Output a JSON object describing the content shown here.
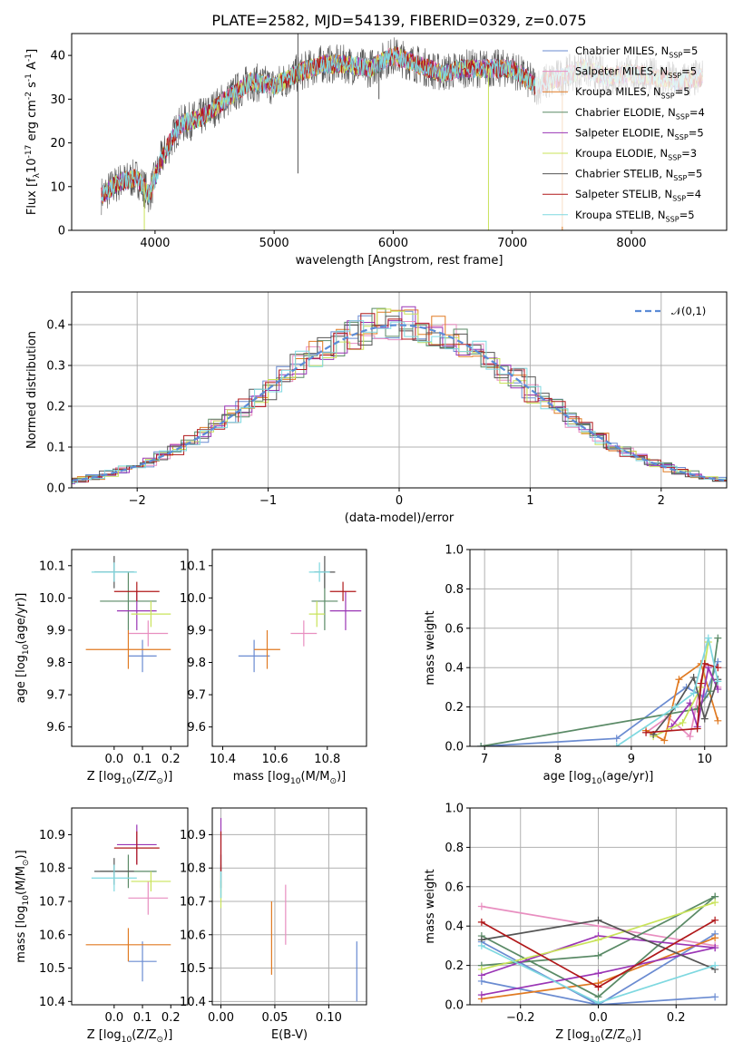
{
  "chart_data": [
    {
      "id": "spectrum",
      "type": "line",
      "title": "PLATE=2582, MJD=54139, FIBERID=0329, z=0.075",
      "xlabel": "wavelength [Angstrom, rest frame]",
      "ylabel": "Flux [f$_\\lambda$10$^{-17}$ erg cm$^{-2}$ s$^{-1}$ A$^{-1}$]",
      "xlim": [
        3300,
        8800
      ],
      "ylim": [
        0,
        45
      ],
      "xticks": [
        4000,
        5000,
        6000,
        7000,
        8000
      ],
      "yticks": [
        0,
        10,
        20,
        30,
        40
      ],
      "grid": false,
      "legend_position": "top-right",
      "continuum": {
        "x": [
          3550,
          3700,
          3850,
          3950,
          4050,
          4200,
          4400,
          4600,
          4800,
          5000,
          5200,
          5400,
          5600,
          5800,
          6000,
          6200,
          6400,
          6600,
          6800,
          7000,
          7200,
          7400,
          7600,
          7800,
          8000,
          8200,
          8400,
          8600
        ],
        "y": [
          8,
          11,
          12,
          8,
          16,
          24,
          26,
          30,
          34,
          33,
          36,
          38,
          38,
          37,
          40,
          38,
          36,
          37,
          37,
          37,
          33,
          35,
          37,
          35,
          36,
          35,
          34,
          35
        ]
      },
      "series": [
        {
          "name": "Chabrier MILES, N$_{SSP}$=5",
          "color": "#6a8bd1"
        },
        {
          "name": "Salpeter MILES, N$_{SSP}$=5",
          "color": "#e88ec0"
        },
        {
          "name": "Kroupa MILES, N$_{SSP}$=5",
          "color": "#e07a22"
        },
        {
          "name": "Chabrier ELODIE, N$_{SSP}$=4",
          "color": "#5a8a66"
        },
        {
          "name": "Salpeter ELODIE, N$_{SSP}$=5",
          "color": "#9a35b5"
        },
        {
          "name": "Kroupa ELODIE, N$_{SSP}$=3",
          "color": "#c9e35a"
        },
        {
          "name": "Chabrier STELIB, N$_{SSP}$=5",
          "color": "#555555"
        },
        {
          "name": "Salpeter STELIB, N$_{SSP}$=4",
          "color": "#b0181a"
        },
        {
          "name": "Kroupa STELIB, N$_{SSP}$=5",
          "color": "#7ed8e0"
        }
      ]
    },
    {
      "id": "residuals",
      "type": "line",
      "xlabel": "(data-model)/error",
      "ylabel": "Normed distribution",
      "xlim": [
        -2.5,
        2.5
      ],
      "ylim": [
        0,
        0.48
      ],
      "xticks": [
        -2,
        -1,
        0,
        1,
        2
      ],
      "yticks": [
        0.0,
        0.1,
        0.2,
        0.3,
        0.4
      ],
      "grid": true,
      "legend_position": "top-right",
      "legend_label": "$\\mathcal{N}(0,1)$",
      "reference_curve": "normal(0,1)"
    },
    {
      "id": "age_vs_Z",
      "type": "scatter",
      "xlabel": "Z [log$_{10}$(Z/Z$_\\odot$)]",
      "ylabel": "age  [log$_{10}$(age/yr)]",
      "xlim": [
        -0.15,
        0.26
      ],
      "ylim": [
        9.54,
        10.15
      ],
      "xticks": [
        0.0,
        0.1,
        0.2
      ],
      "yticks": [
        9.6,
        9.7,
        9.8,
        9.9,
        10.0,
        10.1
      ],
      "grid": false,
      "points": [
        {
          "x": 0.1,
          "y": 9.82,
          "ex": 0.05,
          "ey": 0.05,
          "color": "#6a8bd1"
        },
        {
          "x": 0.12,
          "y": 9.89,
          "ex": 0.07,
          "ey": 0.04,
          "color": "#e88ec0"
        },
        {
          "x": 0.05,
          "y": 9.84,
          "ex": 0.15,
          "ey": 0.06,
          "color": "#e07a22"
        },
        {
          "x": 0.05,
          "y": 9.99,
          "ex": 0.1,
          "ey": 0.09,
          "color": "#5a8a66"
        },
        {
          "x": 0.08,
          "y": 9.96,
          "ex": 0.07,
          "ey": 0.06,
          "color": "#9a35b5"
        },
        {
          "x": 0.13,
          "y": 9.95,
          "ex": 0.07,
          "ey": 0.04,
          "color": "#c9e35a"
        },
        {
          "x": 0.0,
          "y": 10.08,
          "ex": 0.07,
          "ey": 0.05,
          "color": "#555555"
        },
        {
          "x": 0.08,
          "y": 10.02,
          "ex": 0.08,
          "ey": 0.03,
          "color": "#b0181a"
        },
        {
          "x": 0.0,
          "y": 10.08,
          "ex": 0.08,
          "ey": 0.03,
          "color": "#7ed8e0"
        }
      ]
    },
    {
      "id": "age_vs_mass",
      "type": "scatter",
      "xlabel": "mass [log$_{10}$(M/M$_\\odot$)]",
      "ylabel": "",
      "xlim": [
        10.36,
        10.95
      ],
      "ylim": [
        9.54,
        10.15
      ],
      "xticks": [
        10.4,
        10.6,
        10.8
      ],
      "yticks": [
        9.6,
        9.7,
        9.8,
        9.9,
        10.0,
        10.1
      ],
      "grid": false,
      "points": [
        {
          "x": 10.52,
          "y": 9.82,
          "ex": 0.06,
          "ey": 0.05,
          "color": "#6a8bd1"
        },
        {
          "x": 10.71,
          "y": 9.89,
          "ex": 0.05,
          "ey": 0.04,
          "color": "#e88ec0"
        },
        {
          "x": 10.57,
          "y": 9.84,
          "ex": 0.05,
          "ey": 0.06,
          "color": "#e07a22"
        },
        {
          "x": 10.79,
          "y": 9.99,
          "ex": 0.05,
          "ey": 0.09,
          "color": "#5a8a66"
        },
        {
          "x": 10.87,
          "y": 9.96,
          "ex": 0.06,
          "ey": 0.06,
          "color": "#9a35b5"
        },
        {
          "x": 10.76,
          "y": 9.95,
          "ex": 0.03,
          "ey": 0.04,
          "color": "#c9e35a"
        },
        {
          "x": 10.79,
          "y": 10.08,
          "ex": 0.04,
          "ey": 0.05,
          "color": "#555555"
        },
        {
          "x": 10.86,
          "y": 10.02,
          "ex": 0.05,
          "ey": 0.03,
          "color": "#b0181a"
        },
        {
          "x": 10.77,
          "y": 10.08,
          "ex": 0.04,
          "ey": 0.03,
          "color": "#7ed8e0"
        }
      ]
    },
    {
      "id": "mass_weight_vs_age",
      "type": "line",
      "xlabel": "age  [log$_{10}$(age/yr)]",
      "ylabel": "mass weight",
      "xlim": [
        6.8,
        10.3
      ],
      "ylim": [
        0,
        1.0
      ],
      "xticks": [
        7,
        8,
        9,
        10
      ],
      "yticks": [
        0.0,
        0.2,
        0.4,
        0.6,
        0.8,
        1.0
      ],
      "grid": true,
      "series": [
        {
          "color": "#6a8bd1",
          "x": [
            6.95,
            8.8,
            9.75,
            10.0,
            10.18
          ],
          "y": [
            0.0,
            0.04,
            0.3,
            0.25,
            0.43
          ]
        },
        {
          "color": "#e88ec0",
          "x": [
            9.2,
            9.5,
            9.8,
            10.0,
            10.18
          ],
          "y": [
            0.07,
            0.15,
            0.05,
            0.42,
            0.3
          ]
        },
        {
          "color": "#e07a22",
          "x": [
            9.2,
            9.45,
            9.65,
            9.95,
            10.18
          ],
          "y": [
            0.08,
            0.03,
            0.34,
            0.42,
            0.13
          ]
        },
        {
          "color": "#5a8a66",
          "x": [
            6.95,
            9.9,
            10.08,
            10.18
          ],
          "y": [
            0.0,
            0.19,
            0.28,
            0.55
          ]
        },
        {
          "color": "#9a35b5",
          "x": [
            9.55,
            9.8,
            9.9,
            10.05,
            10.18
          ],
          "y": [
            0.1,
            0.22,
            0.1,
            0.4,
            0.29
          ]
        },
        {
          "color": "#c9e35a",
          "x": [
            9.3,
            9.7,
            9.95,
            10.05
          ],
          "y": [
            0.05,
            0.12,
            0.3,
            0.53
          ]
        },
        {
          "color": "#555555",
          "x": [
            9.3,
            9.6,
            9.85,
            10.0,
            10.18
          ],
          "y": [
            0.06,
            0.2,
            0.35,
            0.14,
            0.34
          ]
        },
        {
          "color": "#b0181a",
          "x": [
            9.2,
            9.9,
            9.95,
            10.0,
            10.18
          ],
          "y": [
            0.07,
            0.09,
            0.32,
            0.42,
            0.4
          ]
        },
        {
          "color": "#7ed8e0",
          "x": [
            8.8,
            9.6,
            9.85,
            10.05,
            10.18
          ],
          "y": [
            0.0,
            0.2,
            0.27,
            0.55,
            0.33
          ]
        }
      ]
    },
    {
      "id": "mass_vs_Z",
      "type": "scatter",
      "xlabel": "Z [log$_{10}$(Z/Z$_\\odot$)]",
      "ylabel": "mass [log$_{10}$(M/M$_\\odot$)]",
      "xlim": [
        -0.15,
        0.26
      ],
      "ylim": [
        10.39,
        10.98
      ],
      "xticks": [
        0.0,
        0.1,
        0.2
      ],
      "yticks": [
        10.4,
        10.5,
        10.6,
        10.7,
        10.8,
        10.9
      ],
      "grid": false,
      "points": [
        {
          "x": 0.1,
          "y": 10.52,
          "ex": 0.05,
          "ey": 0.06,
          "color": "#6a8bd1"
        },
        {
          "x": 0.12,
          "y": 10.71,
          "ex": 0.07,
          "ey": 0.05,
          "color": "#e88ec0"
        },
        {
          "x": 0.05,
          "y": 10.57,
          "ex": 0.15,
          "ey": 0.05,
          "color": "#e07a22"
        },
        {
          "x": 0.05,
          "y": 10.79,
          "ex": 0.1,
          "ey": 0.05,
          "color": "#5a8a66"
        },
        {
          "x": 0.08,
          "y": 10.87,
          "ex": 0.07,
          "ey": 0.06,
          "color": "#9a35b5"
        },
        {
          "x": 0.13,
          "y": 10.76,
          "ex": 0.07,
          "ey": 0.03,
          "color": "#c9e35a"
        },
        {
          "x": 0.0,
          "y": 10.79,
          "ex": 0.07,
          "ey": 0.04,
          "color": "#555555"
        },
        {
          "x": 0.08,
          "y": 10.86,
          "ex": 0.08,
          "ey": 0.05,
          "color": "#b0181a"
        },
        {
          "x": 0.0,
          "y": 10.77,
          "ex": 0.08,
          "ey": 0.04,
          "color": "#7ed8e0"
        }
      ]
    },
    {
      "id": "mass_vs_ebv",
      "type": "scatter",
      "xlabel": "E(B-V)",
      "ylabel": "",
      "xlim": [
        -0.008,
        0.135
      ],
      "ylim": [
        10.39,
        10.98
      ],
      "xticks": [
        0.0,
        0.05,
        0.1
      ],
      "yticks": [
        10.4,
        10.5,
        10.6,
        10.7,
        10.8,
        10.9
      ],
      "grid": true,
      "points": [
        {
          "x": 0.126,
          "y": 10.49,
          "ex": 0,
          "ey": 0.09,
          "color": "#6a8bd1"
        },
        {
          "x": 0.06,
          "y": 10.66,
          "ex": 0,
          "ey": 0.09,
          "color": "#e88ec0"
        },
        {
          "x": 0.047,
          "y": 10.59,
          "ex": 0,
          "ey": 0.11,
          "color": "#e07a22"
        },
        {
          "x": 0.0,
          "y": 10.76,
          "ex": 0,
          "ey": 0.05,
          "color": "#5a8a66"
        },
        {
          "x": 0.0,
          "y": 10.87,
          "ex": 0,
          "ey": 0.08,
          "color": "#9a35b5"
        },
        {
          "x": 0.0,
          "y": 10.72,
          "ex": 0,
          "ey": 0.04,
          "color": "#c9e35a"
        },
        {
          "x": 0.0,
          "y": 10.79,
          "ex": 0,
          "ey": 0.05,
          "color": "#555555"
        },
        {
          "x": 0.0,
          "y": 10.85,
          "ex": 0,
          "ey": 0.06,
          "color": "#b0181a"
        },
        {
          "x": 0.0,
          "y": 10.75,
          "ex": 0,
          "ey": 0.04,
          "color": "#7ed8e0"
        }
      ]
    },
    {
      "id": "mass_weight_vs_Z",
      "type": "line",
      "xlabel": "Z [log$_{10}$(Z/Z$_\\odot$)]",
      "ylabel": "mass weight",
      "xlim": [
        -0.33,
        0.33
      ],
      "ylim": [
        0,
        1.0
      ],
      "xticks": [
        -0.2,
        0.0,
        0.2
      ],
      "yticks": [
        0.0,
        0.2,
        0.4,
        0.6,
        0.8,
        1.0
      ],
      "grid": true,
      "series": [
        {
          "color": "#6a8bd1",
          "x": [
            -0.3,
            0.0,
            0.3
          ],
          "y": [
            0.32,
            0.0,
            0.04
          ]
        },
        {
          "color": "#6a8bd1",
          "x": [
            -0.3,
            0.0,
            0.3
          ],
          "y": [
            0.12,
            0.0,
            0.36
          ]
        },
        {
          "color": "#e88ec0",
          "x": [
            -0.3,
            0.0,
            0.3
          ],
          "y": [
            0.5,
            0.4,
            0.3
          ]
        },
        {
          "color": "#e07a22",
          "x": [
            -0.3,
            0.0,
            0.3
          ],
          "y": [
            0.03,
            0.11,
            0.34
          ]
        },
        {
          "color": "#5a8a66",
          "x": [
            -0.3,
            0.0,
            0.3
          ],
          "y": [
            0.2,
            0.25,
            0.55
          ]
        },
        {
          "color": "#5a8a66",
          "x": [
            -0.3,
            0.0,
            0.3
          ],
          "y": [
            0.35,
            0.04,
            0.55
          ]
        },
        {
          "color": "#9a35b5",
          "x": [
            -0.3,
            0.0,
            0.3
          ],
          "y": [
            0.15,
            0.35,
            0.29
          ]
        },
        {
          "color": "#9a35b5",
          "x": [
            -0.3,
            0.0,
            0.3
          ],
          "y": [
            0.05,
            0.16,
            0.29
          ]
        },
        {
          "color": "#c9e35a",
          "x": [
            -0.3,
            0.0,
            0.3
          ],
          "y": [
            0.18,
            0.33,
            0.52
          ]
        },
        {
          "color": "#555555",
          "x": [
            -0.3,
            0.0,
            0.3
          ],
          "y": [
            0.33,
            0.43,
            0.18
          ]
        },
        {
          "color": "#b0181a",
          "x": [
            -0.3,
            0.0,
            0.3
          ],
          "y": [
            0.42,
            0.09,
            0.43
          ]
        },
        {
          "color": "#7ed8e0",
          "x": [
            -0.3,
            0.0,
            0.3
          ],
          "y": [
            0.3,
            0.01,
            0.2
          ]
        }
      ]
    }
  ]
}
